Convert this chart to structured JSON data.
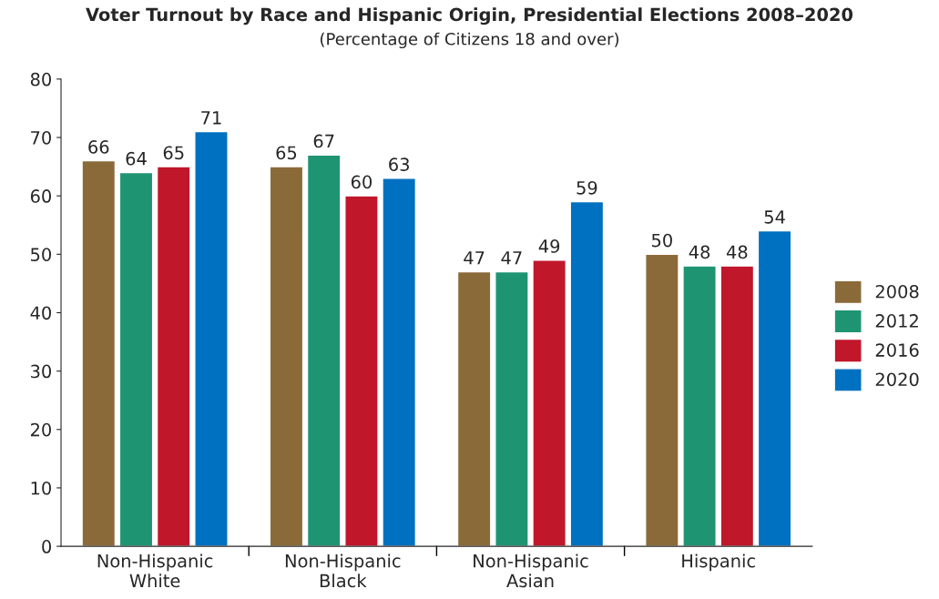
{
  "chart_data": {
    "type": "bar",
    "title": "Voter Turnout by Race and Hispanic Origin, Presidential Elections 2008–2020",
    "subtitle": "(Percentage of Citizens 18 and over)",
    "categories": [
      "Non-Hispanic\nWhite",
      "Non-Hispanic\nBlack",
      "Non-Hispanic\nAsian",
      "Hispanic"
    ],
    "series": [
      {
        "name": "2008",
        "color": "#8b6a3a",
        "values": [
          66,
          65,
          47,
          50
        ]
      },
      {
        "name": "2012",
        "color": "#1f9473",
        "values": [
          64,
          67,
          47,
          48
        ]
      },
      {
        "name": "2016",
        "color": "#c0172b",
        "values": [
          65,
          60,
          49,
          48
        ]
      },
      {
        "name": "2020",
        "color": "#0070c0",
        "values": [
          71,
          63,
          59,
          54
        ]
      }
    ],
    "ylim": [
      0,
      80
    ],
    "yticks": [
      0,
      10,
      20,
      30,
      40,
      50,
      60,
      70,
      80
    ],
    "grid": false,
    "legend": "right",
    "data_labels": true
  }
}
